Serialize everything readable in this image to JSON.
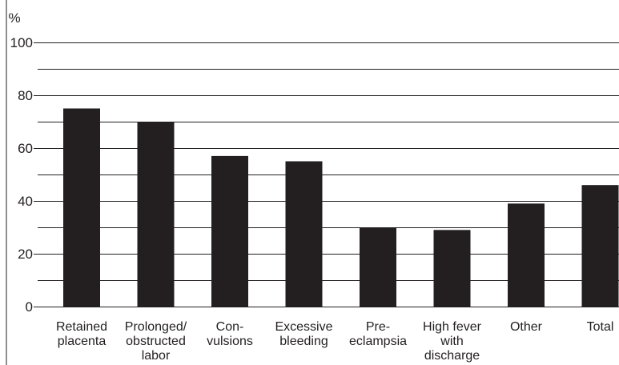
{
  "chart_data": {
    "type": "bar",
    "unit_label": "%",
    "ylim": [
      0,
      100
    ],
    "yticks": [
      "0",
      "20",
      "40",
      "60",
      "80",
      "100"
    ],
    "grid": true,
    "categories": [
      [
        "Retained",
        "placenta"
      ],
      [
        "Prolonged/",
        "obstructed",
        "labor"
      ],
      [
        "Con-",
        "vulsions"
      ],
      [
        "Excessive",
        "bleeding"
      ],
      [
        "Pre-",
        "eclampsia"
      ],
      [
        "High fever",
        "with",
        "discharge"
      ],
      [
        "Other"
      ],
      [
        "Total"
      ]
    ],
    "values": [
      75,
      70,
      57,
      55,
      30,
      29,
      39,
      46
    ],
    "colors": {
      "bar": "#231f20",
      "grid": "#231f20",
      "text": "#231f20"
    }
  }
}
